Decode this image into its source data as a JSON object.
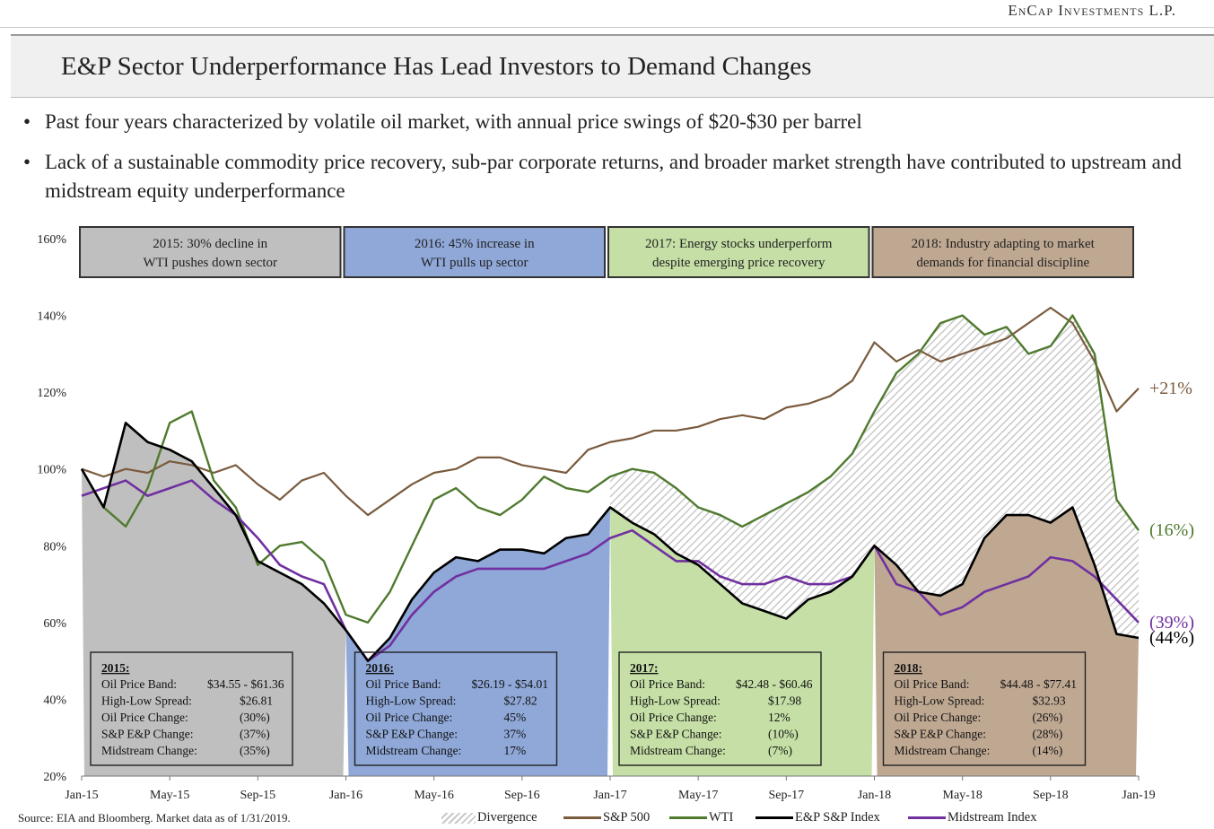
{
  "header": {
    "brand": "EnCap Investments L.P.",
    "title": "E&P Sector Underperformance Has Lead Investors to Demand Changes"
  },
  "bullets": [
    "Past four years characterized by volatile oil market, with annual price swings of $20-$30 per barrel",
    "Lack of a sustainable commodity price recovery, sub-par corporate returns, and broader market strength have contributed to upstream and midstream equity underperformance"
  ],
  "footer": {
    "source": "Source: EIA and Bloomberg. Market data as of 1/31/2019."
  },
  "colors": {
    "sp500": "#7a5b3e",
    "wti": "#4f7a2e",
    "ep": "#000000",
    "midstream": "#7030a0",
    "band2015": "#bfbfbf",
    "band2016": "#8fa8d8",
    "band2017": "#c5dfa6",
    "band2018": "#bfa892",
    "hatch": "#c9c9c9"
  },
  "chart_data": {
    "type": "line",
    "title": "",
    "xlabel": "",
    "ylabel": "",
    "ylim": [
      20,
      160
    ],
    "xlim": [
      0,
      48
    ],
    "y_ticks": [
      20,
      40,
      60,
      80,
      100,
      120,
      140,
      160
    ],
    "y_tick_labels": [
      "20%",
      "40%",
      "60%",
      "80%",
      "100%",
      "120%",
      "140%",
      "160%"
    ],
    "x_ticks": [
      0,
      4,
      8,
      12,
      16,
      20,
      24,
      28,
      32,
      36,
      40,
      44,
      48
    ],
    "x_tick_labels": [
      "Jan-15",
      "May-15",
      "Sep-15",
      "Jan-16",
      "May-16",
      "Sep-16",
      "Jan-17",
      "May-17",
      "Sep-17",
      "Jan-18",
      "May-18",
      "Sep-18",
      "Jan-19"
    ],
    "x_unit": "months since Jan-15",
    "series": [
      {
        "key": "sp500",
        "name": "S&P 500",
        "end_label": "+21%",
        "x": [
          0,
          1,
          2,
          3,
          4,
          5,
          6,
          7,
          8,
          9,
          10,
          11,
          12,
          13,
          14,
          15,
          16,
          17,
          18,
          19,
          20,
          21,
          22,
          23,
          24,
          25,
          26,
          27,
          28,
          29,
          30,
          31,
          32,
          33,
          34,
          35,
          36,
          37,
          38,
          39,
          40,
          41,
          42,
          43,
          44,
          45,
          46,
          47,
          48
        ],
        "y": [
          100,
          98,
          100,
          99,
          102,
          101,
          99,
          101,
          96,
          92,
          97,
          99,
          93,
          88,
          92,
          96,
          99,
          100,
          103,
          103,
          101,
          100,
          99,
          105,
          107,
          108,
          110,
          110,
          111,
          113,
          114,
          113,
          116,
          117,
          119,
          123,
          133,
          128,
          131,
          128,
          130,
          132,
          134,
          138,
          142,
          138,
          128,
          115,
          121
        ]
      },
      {
        "key": "wti",
        "name": "WTI",
        "end_label": "(16%)",
        "x": [
          0,
          1,
          2,
          3,
          4,
          5,
          6,
          7,
          8,
          9,
          10,
          11,
          12,
          13,
          14,
          15,
          16,
          17,
          18,
          19,
          20,
          21,
          22,
          23,
          24,
          25,
          26,
          27,
          28,
          29,
          30,
          31,
          32,
          33,
          34,
          35,
          36,
          37,
          38,
          39,
          40,
          41,
          42,
          43,
          44,
          45,
          46,
          47,
          48
        ],
        "y": [
          100,
          90,
          85,
          95,
          112,
          115,
          97,
          90,
          75,
          80,
          81,
          76,
          62,
          60,
          68,
          80,
          92,
          95,
          90,
          88,
          92,
          98,
          95,
          94,
          98,
          100,
          99,
          95,
          90,
          88,
          85,
          88,
          91,
          94,
          98,
          104,
          115,
          125,
          130,
          138,
          140,
          135,
          137,
          130,
          132,
          140,
          130,
          92,
          84
        ]
      },
      {
        "key": "ep",
        "name": "E&P S&P Index",
        "end_label": "(44%)",
        "x": [
          0,
          1,
          2,
          3,
          4,
          5,
          6,
          7,
          8,
          9,
          10,
          11,
          12,
          13,
          14,
          15,
          16,
          17,
          18,
          19,
          20,
          21,
          22,
          23,
          24,
          25,
          26,
          27,
          28,
          29,
          30,
          31,
          32,
          33,
          34,
          35,
          36,
          37,
          38,
          39,
          40,
          41,
          42,
          43,
          44,
          45,
          46,
          47,
          48
        ],
        "y": [
          100,
          90,
          112,
          107,
          105,
          102,
          95,
          88,
          76,
          73,
          70,
          65,
          58,
          50,
          56,
          66,
          73,
          77,
          76,
          79,
          79,
          78,
          82,
          83,
          90,
          86,
          83,
          78,
          75,
          70,
          65,
          63,
          61,
          66,
          68,
          72,
          80,
          75,
          68,
          67,
          70,
          82,
          88,
          88,
          86,
          90,
          75,
          57,
          56
        ]
      },
      {
        "key": "midstream",
        "name": "Midstream Index",
        "end_label": "(39%)",
        "x": [
          0,
          1,
          2,
          3,
          4,
          5,
          6,
          7,
          8,
          9,
          10,
          11,
          12,
          13,
          14,
          15,
          16,
          17,
          18,
          19,
          20,
          21,
          22,
          23,
          24,
          25,
          26,
          27,
          28,
          29,
          30,
          31,
          32,
          33,
          34,
          35,
          36,
          37,
          38,
          39,
          40,
          41,
          42,
          43,
          44,
          45,
          46,
          47,
          48
        ],
        "y": [
          93,
          95,
          97,
          93,
          95,
          97,
          92,
          88,
          82,
          75,
          72,
          70,
          58,
          50,
          54,
          62,
          68,
          72,
          74,
          74,
          74,
          74,
          76,
          78,
          82,
          84,
          80,
          76,
          76,
          72,
          70,
          70,
          72,
          70,
          70,
          72,
          80,
          70,
          68,
          62,
          64,
          68,
          70,
          72,
          77,
          76,
          72,
          66,
          60
        ]
      }
    ],
    "bands": [
      {
        "key": "band2015",
        "from": 0,
        "to": 12,
        "header": "2015: 30% decline in WTI pushes down sector",
        "stats_title": "2015:",
        "stats": [
          [
            "Oil Price Band:",
            "$34.55 - $61.36"
          ],
          [
            "High-Low Spread:",
            "$26.81"
          ],
          [
            "Oil Price Change:",
            "(30%)"
          ],
          [
            "S&P E&P Change:",
            "(37%)"
          ],
          [
            "Midstream Change:",
            "(35%)"
          ]
        ]
      },
      {
        "key": "band2016",
        "from": 12,
        "to": 24,
        "header": "2016: 45% increase in WTI pulls up sector",
        "stats_title": "2016:",
        "stats": [
          [
            "Oil Price Band:",
            "$26.19 - $54.01"
          ],
          [
            "High-Low Spread:",
            "$27.82"
          ],
          [
            "Oil Price Change:",
            "45%"
          ],
          [
            "S&P E&P Change:",
            "37%"
          ],
          [
            "Midstream Change:",
            "17%"
          ]
        ]
      },
      {
        "key": "band2017",
        "from": 24,
        "to": 36,
        "header": "2017: Energy stocks underperform despite emerging price recovery",
        "stats_title": "2017:",
        "stats": [
          [
            "Oil Price Band:",
            "$42.48 - $60.46"
          ],
          [
            "High-Low Spread:",
            "$17.98"
          ],
          [
            "Oil Price Change:",
            "12%"
          ],
          [
            "S&P E&P Change:",
            "(10%)"
          ],
          [
            "Midstream Change:",
            "(7%)"
          ]
        ]
      },
      {
        "key": "band2018",
        "from": 36,
        "to": 48,
        "header": "2018: Industry adapting to market demands for financial discipline",
        "stats_title": "2018:",
        "stats": [
          [
            "Oil Price Band:",
            "$44.48 - $77.41"
          ],
          [
            "High-Low Spread:",
            "$32.93"
          ],
          [
            "Oil Price Change:",
            "(26%)"
          ],
          [
            "S&P E&P Change:",
            "(28%)"
          ],
          [
            "Midstream Change:",
            "(14%)"
          ]
        ]
      }
    ],
    "legend": [
      "Divergence",
      "S&P 500",
      "WTI",
      "E&P S&P Index",
      "Midstream Index"
    ],
    "legend_position": "bottom"
  }
}
